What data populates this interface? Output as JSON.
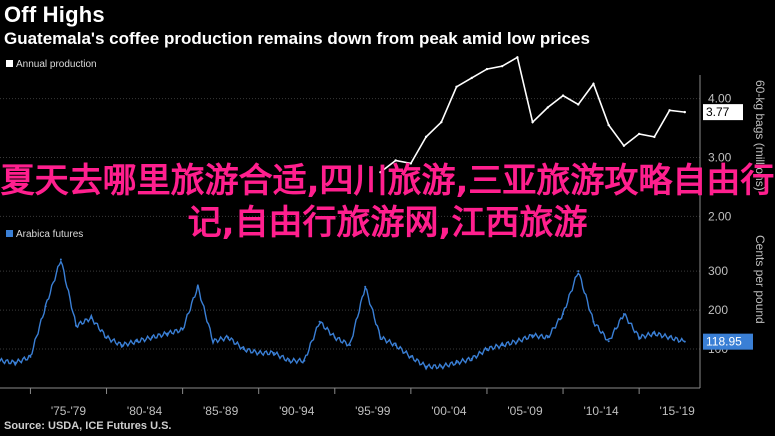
{
  "header": {
    "title": "Off Highs",
    "subtitle": "Guatemala's coffee production remains down from peak amid low prices"
  },
  "source": "Source: USDA, ICE Futures U.S.",
  "overlay_text": "夏天去哪里旅游合适,四川旅游,三亚旅游攻略自由行记,自由行旅游网,江西旅游",
  "colors": {
    "background": "#000000",
    "production_line": "#ffffff",
    "futures_line": "#3a7fd5",
    "overlay_text": "#ff1f8e",
    "grid": "#3a3a3a"
  },
  "chart_data": [
    {
      "type": "line",
      "legend": "Annual production",
      "ylabel": "60-kg bags (millions)",
      "ylim": [
        1.6,
        4.4
      ],
      "yticks": [
        2.0,
        3.0,
        4.0
      ],
      "ytick_labels": [
        "2.00",
        "3.00",
        "4.00"
      ],
      "last_value_label": "3.77",
      "x": [
        1998,
        1999,
        2000,
        2001,
        2002,
        2003,
        2004,
        2005,
        2006,
        2007,
        2008,
        2009,
        2010,
        2011,
        2012,
        2013,
        2014,
        2015,
        2016,
        2017,
        2018
      ],
      "values": [
        2.75,
        2.95,
        2.9,
        3.35,
        3.6,
        4.2,
        4.35,
        4.5,
        4.55,
        4.7,
        3.6,
        3.85,
        4.05,
        3.9,
        4.25,
        3.55,
        3.2,
        3.4,
        3.35,
        3.8,
        3.77
      ]
    },
    {
      "type": "line",
      "legend": "Arabica futures",
      "ylabel": "Cents per pound",
      "ylim": [
        0,
        380
      ],
      "yticks": [
        100,
        200,
        300
      ],
      "ytick_labels": [
        "100",
        "200",
        "300"
      ],
      "last_value_label": "118.95",
      "x": [
        1973,
        1974,
        1975,
        1976,
        1977,
        1978,
        1979,
        1980,
        1981,
        1982,
        1983,
        1984,
        1985,
        1986,
        1987,
        1988,
        1989,
        1990,
        1991,
        1992,
        1993,
        1994,
        1995,
        1996,
        1997,
        1998,
        1999,
        2000,
        2001,
        2002,
        2003,
        2004,
        2005,
        2006,
        2007,
        2008,
        2009,
        2010,
        2011,
        2012,
        2013,
        2014,
        2015,
        2016,
        2017,
        2018
      ],
      "values": [
        70,
        65,
        80,
        210,
        330,
        160,
        180,
        130,
        110,
        120,
        130,
        140,
        150,
        260,
        120,
        130,
        100,
        90,
        90,
        70,
        70,
        170,
        130,
        110,
        260,
        130,
        110,
        80,
        55,
        55,
        65,
        75,
        100,
        110,
        120,
        135,
        130,
        190,
        300,
        170,
        120,
        190,
        130,
        140,
        130,
        119
      ]
    }
  ],
  "x_axis": {
    "tick_labels": [
      "'75-'79",
      "'80-'84",
      "'85-'89",
      "'90-'94",
      "'95-'99",
      "'00-'04",
      "'05-'09",
      "'10-'14",
      "'15-'19"
    ]
  }
}
